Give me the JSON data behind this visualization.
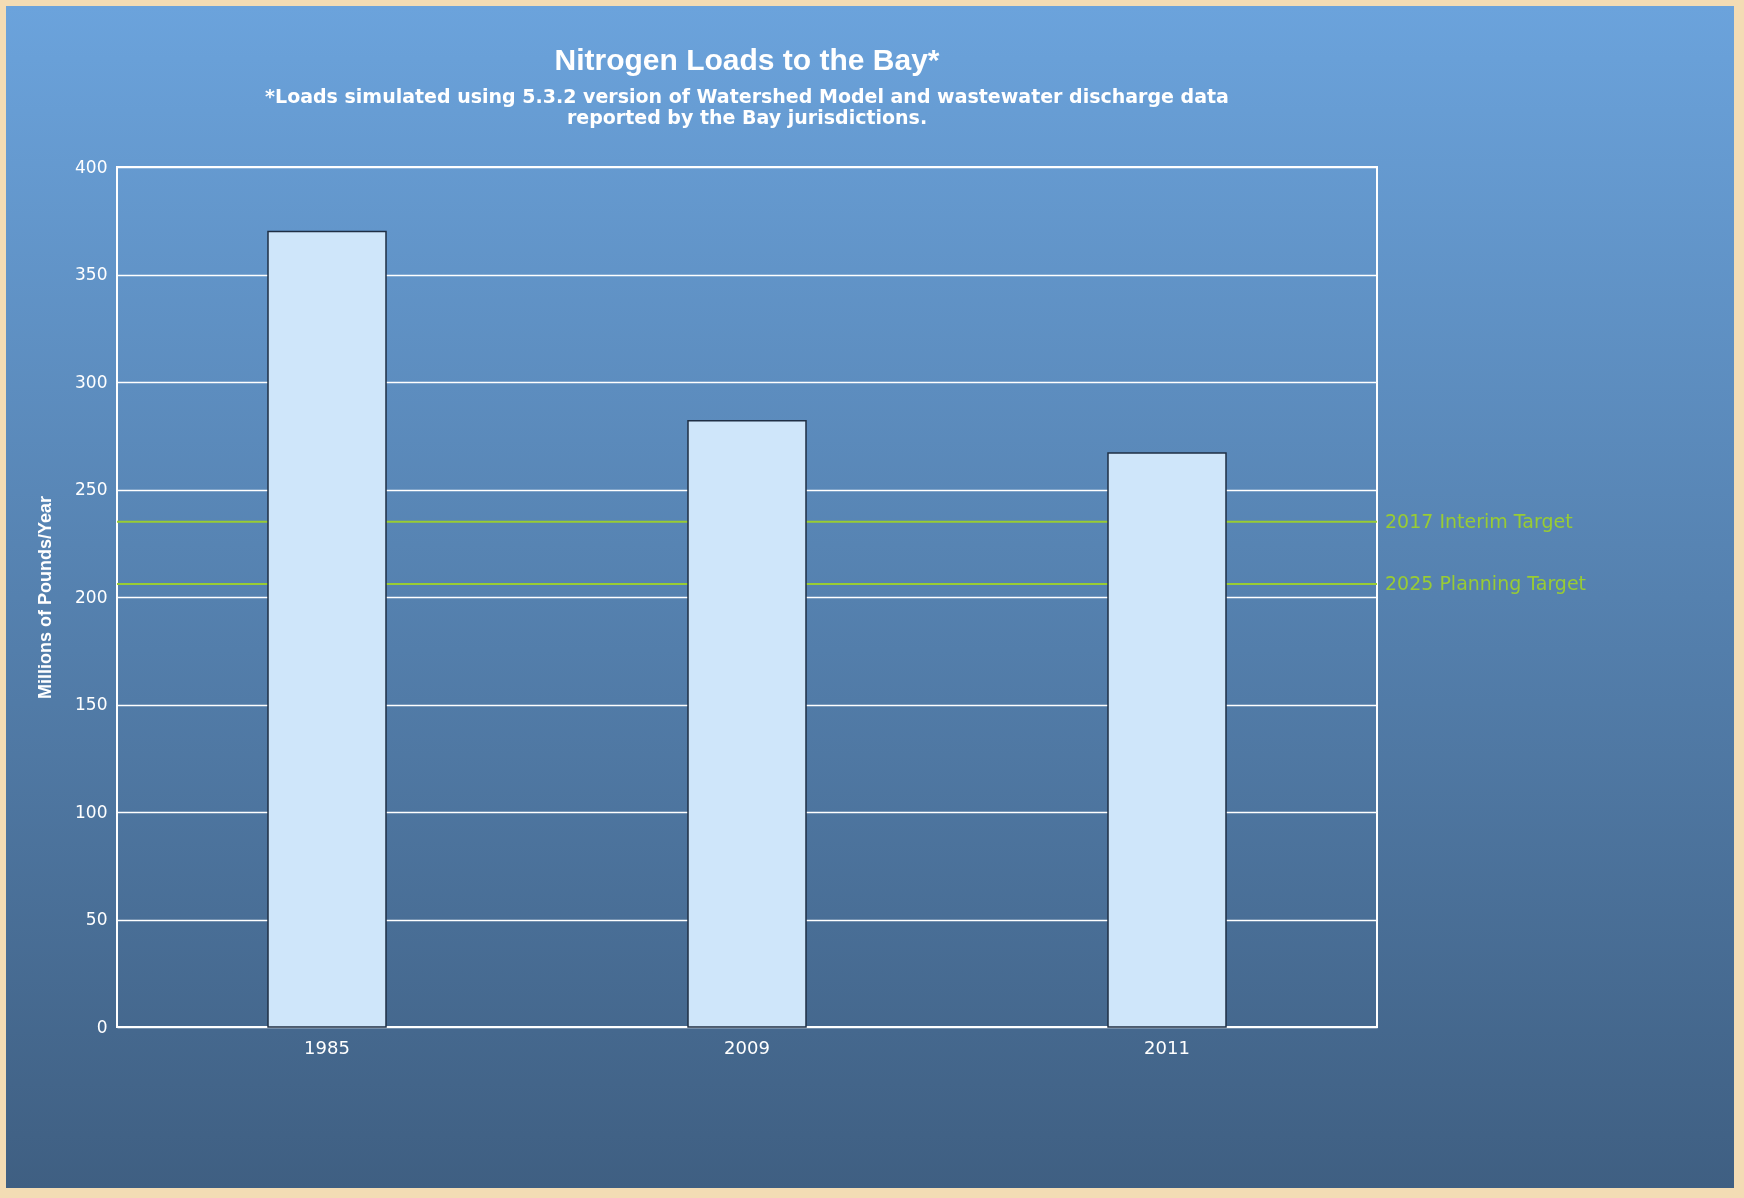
{
  "chart_data": {
    "type": "bar",
    "title": "Nitrogen Loads to the Bay*",
    "subtitle": "*Loads simulated using 5.3.2 version of Watershed Model and wastewater discharge data reported by the Bay jurisdictions.",
    "ylabel": "Millions of Pounds/Year",
    "categories": [
      "1985",
      "2009",
      "2011"
    ],
    "values": [
      370,
      282,
      267
    ],
    "color": "#cfe6fa",
    "ylim": [
      0,
      400
    ],
    "yticks": [
      0,
      50,
      100,
      150,
      200,
      250,
      300,
      350,
      400
    ],
    "grid": "y",
    "ref_lines": [
      {
        "axis": "y",
        "value": 235,
        "label": "2017 Interim Target",
        "color": "#99cc33"
      },
      {
        "axis": "y",
        "value": 206,
        "label": "2025 Planning Target",
        "color": "#99cc33"
      }
    ]
  }
}
